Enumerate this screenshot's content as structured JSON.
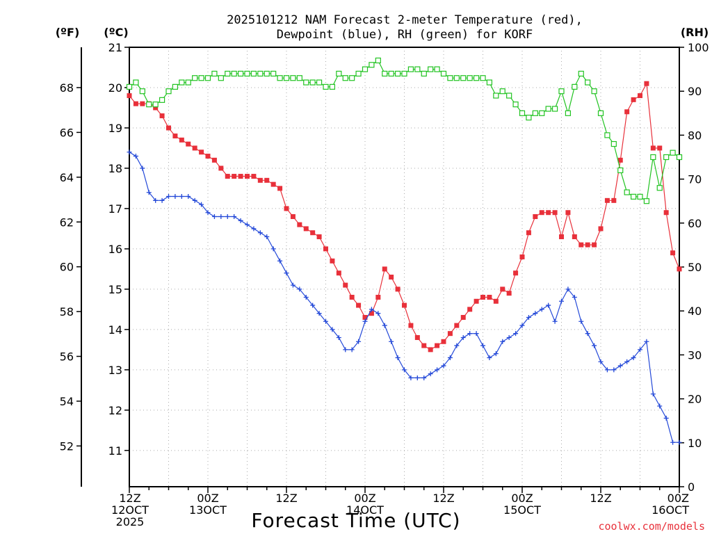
{
  "chart_data": {
    "type": "line",
    "title_line1": "2025101212 NAM Forecast 2-meter Temperature (red),",
    "title_line2": "Dewpoint (blue), RH (green) for KORF",
    "xlabel": "Forecast Time (UTC)",
    "unit_labels": {
      "fahrenheit": "(ºF)",
      "celsius": "(ºC)",
      "rh": "(RH)"
    },
    "watermark": "coolwx.com/models",
    "x_start_hour": 0,
    "x_end_hour": 84,
    "x_ticks": [
      {
        "hour": 0,
        "line1": "12Z",
        "line2": "12OCT",
        "line3": "2025"
      },
      {
        "hour": 12,
        "line1": "00Z",
        "line2": "13OCT",
        "line3": ""
      },
      {
        "hour": 24,
        "line1": "12Z",
        "line2": "",
        "line3": ""
      },
      {
        "hour": 36,
        "line1": "00Z",
        "line2": "14OCT",
        "line3": ""
      },
      {
        "hour": 48,
        "line1": "12Z",
        "line2": "",
        "line3": ""
      },
      {
        "hour": 60,
        "line1": "00Z",
        "line2": "15OCT",
        "line3": ""
      },
      {
        "hour": 72,
        "line1": "12Z",
        "line2": "",
        "line3": ""
      },
      {
        "hour": 84,
        "line1": "00Z",
        "line2": "16OCT",
        "line3": ""
      }
    ],
    "celsius_axis": {
      "min": 10.1,
      "max": 21.0,
      "ticks": [
        "11",
        "12",
        "13",
        "14",
        "15",
        "16",
        "17",
        "18",
        "19",
        "20",
        "21"
      ]
    },
    "fahrenheit_axis": {
      "ticks": [
        "52",
        "54",
        "56",
        "58",
        "60",
        "62",
        "64",
        "66",
        "68"
      ]
    },
    "rh_axis": {
      "min": 0,
      "max": 100,
      "ticks": [
        "0",
        "10",
        "20",
        "30",
        "40",
        "50",
        "60",
        "70",
        "80",
        "90",
        "100"
      ]
    },
    "series": [
      {
        "name": "Temperature",
        "unit": "C",
        "color": "#e8303a",
        "marker": "filled-square",
        "values": [
          19.8,
          19.6,
          19.6,
          19.6,
          19.5,
          19.3,
          19.0,
          18.8,
          18.7,
          18.6,
          18.5,
          18.4,
          18.3,
          18.2,
          18.0,
          17.8,
          17.8,
          17.8,
          17.8,
          17.8,
          17.7,
          17.7,
          17.6,
          17.5,
          17.0,
          16.8,
          16.6,
          16.5,
          16.4,
          16.3,
          16.0,
          15.7,
          15.4,
          15.1,
          14.8,
          14.6,
          14.3,
          14.4,
          14.8,
          15.5,
          15.3,
          15.0,
          14.6,
          14.1,
          13.8,
          13.6,
          13.5,
          13.6,
          13.7,
          13.9,
          14.1,
          14.3,
          14.5,
          14.7,
          14.8,
          14.8,
          14.7,
          15.0,
          14.9,
          15.4,
          15.8,
          16.4,
          16.8,
          16.9,
          16.9,
          16.9,
          16.3,
          16.9,
          16.3,
          16.1,
          16.1,
          16.1,
          16.5,
          17.2,
          17.2,
          18.2,
          19.4,
          19.7,
          19.8,
          20.1,
          18.5,
          18.5,
          16.9,
          15.9,
          15.5
        ]
      },
      {
        "name": "Dewpoint",
        "unit": "C",
        "color": "#2348d8",
        "marker": "plus",
        "values": [
          18.4,
          18.3,
          18.0,
          17.4,
          17.2,
          17.2,
          17.3,
          17.3,
          17.3,
          17.3,
          17.2,
          17.1,
          16.9,
          16.8,
          16.8,
          16.8,
          16.8,
          16.7,
          16.6,
          16.5,
          16.4,
          16.3,
          16.0,
          15.7,
          15.4,
          15.1,
          15.0,
          14.8,
          14.6,
          14.4,
          14.2,
          14.0,
          13.8,
          13.5,
          13.5,
          13.7,
          14.2,
          14.5,
          14.4,
          14.1,
          13.7,
          13.3,
          13.0,
          12.8,
          12.8,
          12.8,
          12.9,
          13.0,
          13.1,
          13.3,
          13.6,
          13.8,
          13.9,
          13.9,
          13.6,
          13.3,
          13.4,
          13.7,
          13.8,
          13.9,
          14.1,
          14.3,
          14.4,
          14.5,
          14.6,
          14.2,
          14.7,
          15.0,
          14.8,
          14.2,
          13.9,
          13.6,
          13.2,
          13.0,
          13.0,
          13.1,
          13.2,
          13.3,
          13.5,
          13.7,
          12.4,
          12.1,
          11.8,
          11.2,
          11.2
        ]
      },
      {
        "name": "RH",
        "unit": "%",
        "color": "#21c321",
        "marker": "open-square",
        "values": [
          91,
          92,
          90,
          87,
          87,
          88,
          90,
          91,
          92,
          92,
          93,
          93,
          93,
          94,
          93,
          94,
          94,
          94,
          94,
          94,
          94,
          94,
          94,
          93,
          93,
          93,
          93,
          92,
          92,
          92,
          91,
          91,
          94,
          93,
          93,
          94,
          95,
          96,
          97,
          94,
          94,
          94,
          94,
          95,
          95,
          94,
          95,
          95,
          94,
          93,
          93,
          93,
          93,
          93,
          93,
          92,
          89,
          90,
          89,
          87,
          85,
          84,
          85,
          85,
          86,
          86,
          90,
          85,
          91,
          94,
          92,
          90,
          85,
          80,
          78,
          72,
          67,
          66,
          66,
          65,
          75,
          68,
          75,
          76,
          75
        ]
      }
    ]
  }
}
